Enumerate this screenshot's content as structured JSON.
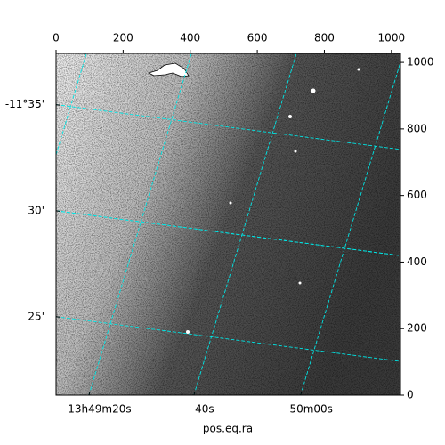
{
  "chart_data": {
    "type": "image",
    "xlabel": "pos.eq.ra",
    "xlim": [
      0,
      1027
    ],
    "ylim": [
      0,
      1027
    ],
    "xticks": [
      0,
      200,
      400,
      600,
      800,
      1000
    ],
    "yticks": [
      0,
      200,
      400,
      600,
      800,
      1000
    ],
    "ra_ticks": [
      {
        "value": 98,
        "label": "13h49m20s"
      },
      {
        "value": 411,
        "label": "40s"
      },
      {
        "value": 729,
        "label": "50m00s"
      }
    ],
    "dec_ticks": [
      {
        "value": 873,
        "label": "-11°35'"
      },
      {
        "value": 554,
        "label": "30'"
      },
      {
        "value": 236,
        "label": "25'"
      }
    ],
    "grid_color": "#00e5e5"
  }
}
